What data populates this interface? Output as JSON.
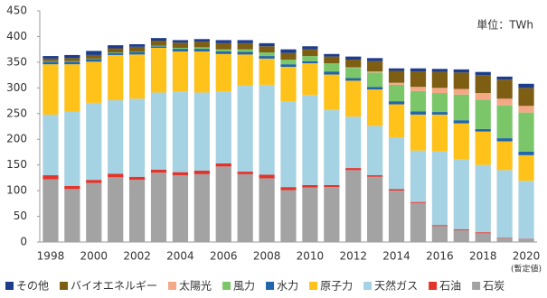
{
  "chart_data": {
    "type": "stacked-bar",
    "unit_label": "単位：TWh",
    "note": "(暫定値)",
    "categories": [
      "1998",
      null,
      "2000",
      null,
      "2002",
      null,
      "2004",
      null,
      "2006",
      null,
      "2008",
      null,
      "2010",
      null,
      "2012",
      null,
      "2014",
      null,
      "2016",
      null,
      "2018",
      null,
      "2020"
    ],
    "ylim": [
      0,
      450
    ],
    "yticks": [
      0,
      50,
      100,
      150,
      200,
      250,
      300,
      350,
      400,
      450
    ],
    "grid": false,
    "legend": "bottom",
    "series": [
      {
        "name": "石炭",
        "color": "#a3a3a3",
        "values": [
          122,
          103,
          115,
          126,
          121,
          135,
          130,
          132,
          147,
          132,
          124,
          101,
          106,
          107,
          140,
          127,
          100,
          76,
          31,
          23,
          17,
          7,
          5
        ]
      },
      {
        "name": "石油",
        "color": "#e3342c",
        "values": [
          8,
          6,
          6,
          7,
          6,
          6,
          6,
          7,
          6,
          5,
          7,
          6,
          5,
          4,
          4,
          3,
          3,
          2,
          2,
          2,
          2,
          1,
          1
        ]
      },
      {
        "name": "天然ガス",
        "color": "#a6d3e3",
        "values": [
          118,
          145,
          150,
          143,
          152,
          150,
          157,
          152,
          140,
          167,
          175,
          166,
          175,
          146,
          100,
          96,
          101,
          100,
          143,
          136,
          131,
          132,
          113
        ]
      },
      {
        "name": "原子力",
        "color": "#ffc21a",
        "values": [
          98,
          92,
          80,
          88,
          86,
          87,
          78,
          80,
          73,
          61,
          51,
          68,
          62,
          69,
          70,
          71,
          64,
          70,
          72,
          70,
          65,
          56,
          50
        ]
      },
      {
        "name": "水力",
        "color": "#2166ac",
        "values": [
          5,
          5,
          5,
          4,
          5,
          3,
          5,
          5,
          5,
          5,
          5,
          5,
          4,
          6,
          5,
          5,
          6,
          6,
          5,
          6,
          5,
          6,
          7
        ]
      },
      {
        "name": "風力",
        "color": "#7cc66a",
        "values": [
          1,
          1,
          1,
          1,
          1,
          1,
          2,
          3,
          4,
          5,
          7,
          9,
          10,
          16,
          20,
          28,
          32,
          40,
          37,
          50,
          57,
          64,
          76
        ]
      },
      {
        "name": "太陽光",
        "color": "#f4a886",
        "values": [
          0,
          0,
          0,
          0,
          0,
          0,
          0,
          0,
          0,
          0,
          0,
          0,
          0,
          0,
          1,
          2,
          4,
          8,
          10,
          11,
          13,
          13,
          13
        ]
      },
      {
        "name": "バイオエネルギー",
        "color": "#7d5e12",
        "values": [
          5,
          6,
          7,
          8,
          9,
          10,
          10,
          11,
          12,
          12,
          12,
          13,
          13,
          13,
          15,
          20,
          23,
          30,
          31,
          32,
          35,
          37,
          35
        ]
      },
      {
        "name": "その他",
        "color": "#1d3c8c",
        "values": [
          5,
          6,
          8,
          6,
          5,
          5,
          5,
          5,
          6,
          6,
          6,
          7,
          6,
          5,
          6,
          6,
          5,
          6,
          6,
          6,
          6,
          6,
          8
        ]
      }
    ]
  }
}
